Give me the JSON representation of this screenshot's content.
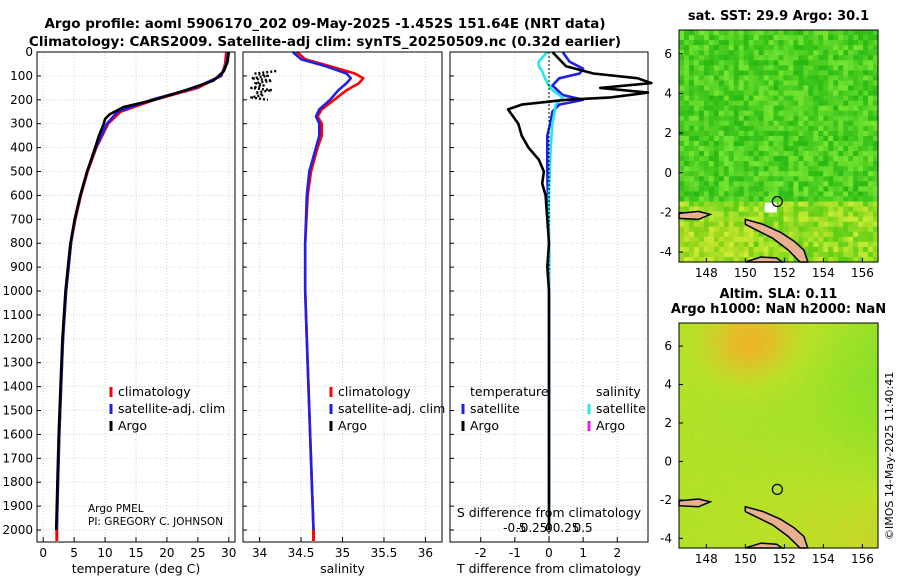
{
  "title": {
    "line1": "Argo profile: aoml 5906170_202 09-May-2025 -1.452S 151.64E (NRT data)",
    "line2": "Climatology: CARS2009. Satellite-adj clim: synTS_20250509.nc (0.32d earlier)"
  },
  "watermark": "©IMOS 14-May-2025 11:40:41",
  "colors": {
    "climatology": "#ff0000",
    "satellite_adj": "#1f1fe6",
    "argo": "#000000",
    "satellite_sal": "#22e8ee",
    "argo_sal": "#e020e0",
    "sst_green": "#3dc83d",
    "land": "#e8b090"
  },
  "chart_data": [
    {
      "id": "temperature",
      "type": "line",
      "xlabel": "temperature (deg C)",
      "ylabel": "",
      "xlim": [
        -1,
        31
      ],
      "ylim": [
        0,
        2050
      ],
      "y_reversed": true,
      "xticks": [
        0,
        5,
        10,
        15,
        20,
        25,
        30
      ],
      "yticks": [
        0,
        100,
        200,
        300,
        400,
        500,
        600,
        700,
        800,
        900,
        1000,
        1100,
        1200,
        1300,
        1400,
        1500,
        1600,
        1700,
        1800,
        1900,
        2000
      ],
      "legend": [
        "climatology",
        "satellite-adj. clim",
        "Argo"
      ],
      "annotation": [
        "Argo PMEL",
        "PI: GREGORY C. JOHNSON"
      ],
      "series": [
        {
          "name": "climatology",
          "color": "#ff0000",
          "depth": [
            0,
            50,
            100,
            150,
            200,
            250,
            300,
            400,
            500,
            600,
            700,
            800,
            900,
            1000,
            1200,
            1400,
            1600,
            1800,
            2000
          ],
          "values": [
            29.6,
            29.4,
            28.8,
            25,
            18,
            12.5,
            10.5,
            8.6,
            7.2,
            6.1,
            5.2,
            4.5,
            4.1,
            3.7,
            3.2,
            2.9,
            2.6,
            2.4,
            2.2
          ]
        },
        {
          "name": "satellite-adj. clim",
          "color": "#1f1fe6",
          "depth": [
            0,
            50,
            100,
            150,
            200,
            250,
            300,
            400,
            500,
            600,
            700,
            800,
            900,
            1000,
            1200,
            1400,
            1600,
            1800,
            2000
          ],
          "values": [
            29.9,
            29.6,
            28.7,
            24.5,
            17.5,
            12,
            10.3,
            8.5,
            7.1,
            6,
            5.1,
            4.5,
            4.1,
            3.7,
            3.2,
            2.9,
            2.6,
            2.4,
            2.2
          ]
        },
        {
          "name": "Argo",
          "color": "#000000",
          "depth": [
            0,
            40,
            80,
            120,
            160,
            200,
            230,
            260,
            280,
            300,
            350,
            400,
            500,
            600,
            700,
            800,
            900,
            1000,
            1200,
            1400,
            1600,
            1800,
            2000
          ],
          "values": [
            30,
            29.8,
            29.2,
            27.5,
            23,
            18,
            13,
            10.8,
            10,
            9.8,
            9,
            8.4,
            7.1,
            6,
            5.1,
            4.4,
            4,
            3.6,
            3.1,
            2.8,
            2.5,
            2.3,
            2.1
          ]
        }
      ]
    },
    {
      "id": "salinity",
      "type": "line",
      "xlabel": "salinity",
      "xlim": [
        33.8,
        36.2
      ],
      "ylim": [
        0,
        2050
      ],
      "y_reversed": true,
      "xticks": [
        34,
        34.5,
        35,
        35.5,
        36
      ],
      "legend": [
        "climatology",
        "satellite-adj. clim",
        "Argo"
      ],
      "series": [
        {
          "name": "climatology",
          "color": "#ff0000",
          "depth": [
            0,
            30,
            60,
            90,
            110,
            130,
            160,
            200,
            240,
            270,
            300,
            350,
            400,
            500,
            600,
            800,
            1000,
            1200,
            1500,
            1800,
            2000
          ],
          "values": [
            34.45,
            34.55,
            34.85,
            35.15,
            35.25,
            35.2,
            35.05,
            34.9,
            34.75,
            34.7,
            34.75,
            34.75,
            34.7,
            34.62,
            34.58,
            34.55,
            34.55,
            34.57,
            34.6,
            34.63,
            34.65
          ]
        },
        {
          "name": "satellite-adj. clim",
          "color": "#1f1fe6",
          "depth": [
            0,
            30,
            60,
            90,
            110,
            130,
            160,
            200,
            240,
            270,
            300,
            350,
            400,
            500,
            600,
            800,
            1000,
            1200,
            1500,
            1800,
            2000
          ],
          "values": [
            34.4,
            34.5,
            34.8,
            35.05,
            35.1,
            35.05,
            34.95,
            34.85,
            34.72,
            34.68,
            34.72,
            34.72,
            34.68,
            34.6,
            34.57,
            34.55,
            34.55,
            34.57,
            34.6,
            34.63,
            34.65
          ]
        },
        {
          "name": "Argo",
          "color": "#000000",
          "dashed": true,
          "depth": [
            80,
            90,
            100,
            110,
            120,
            130,
            140,
            150,
            160,
            170,
            180,
            190,
            200
          ],
          "values": [
            34.2,
            33.95,
            34.1,
            33.9,
            34.15,
            33.95,
            34.05,
            33.9,
            34.15,
            33.95,
            34.05,
            33.9,
            34.1
          ]
        }
      ]
    },
    {
      "id": "difference",
      "type": "line",
      "xlabel": "T difference from climatology",
      "xlabel_top": "S difference from climatology",
      "xlim": [
        -2.9,
        2.9
      ],
      "ylim": [
        0,
        2050
      ],
      "y_reversed": true,
      "xticks": [
        -2,
        -1,
        0,
        1,
        2
      ],
      "xtick_labels": [
        "-2",
        "-1",
        "0",
        "1",
        "2"
      ],
      "sticks": [
        -0.5,
        -0.25,
        0,
        0.25,
        0.5
      ],
      "stick_labels": [
        "-0.5",
        "-0.25",
        "0",
        "0.25",
        "0.5"
      ],
      "legend_t": [
        "temperature",
        "satellite",
        "Argo"
      ],
      "legend_s": [
        "salinity",
        "satellite",
        "Argo"
      ],
      "series": [
        {
          "name": "T satellite",
          "color": "#1f1fe6",
          "depth": [
            0,
            40,
            70,
            90,
            110,
            140,
            180,
            200,
            220,
            250,
            290,
            350,
            500,
            800,
            1000,
            1500,
            2000
          ],
          "values": [
            0.4,
            0.6,
            1,
            0.9,
            0.3,
            0.1,
            0.4,
            1,
            0.3,
            0.1,
            0.05,
            -0.05,
            -0.05,
            0,
            0,
            0,
            0
          ]
        },
        {
          "name": "S satellite",
          "color": "#22e8ee",
          "depth": [
            0,
            40,
            60,
            80,
            100,
            130,
            160,
            190,
            220,
            260,
            300,
            400,
            600,
            800,
            1000,
            1300,
            1600,
            2000
          ],
          "values": [
            -0.05,
            -0.3,
            -0.3,
            -0.2,
            -0.15,
            -0.05,
            0.1,
            0.4,
            0.2,
            0.15,
            0.1,
            0.05,
            0,
            0,
            0,
            0,
            0,
            0
          ]
        },
        {
          "name": "T Argo",
          "color": "#000000",
          "depth": [
            0,
            60,
            90,
            110,
            130,
            150,
            170,
            190,
            200,
            220,
            240,
            260,
            300,
            350,
            400,
            450,
            500,
            550,
            600,
            700,
            800,
            900,
            1000,
            1200,
            1500,
            1800,
            2000
          ],
          "values": [
            0.1,
            0.5,
            1.3,
            2.6,
            3,
            1.5,
            2.9,
            1.8,
            0.5,
            -0.8,
            -1.2,
            -1.1,
            -0.9,
            -0.8,
            -0.6,
            -0.3,
            -0.15,
            -0.2,
            -0.1,
            -0.05,
            0,
            -0.05,
            0,
            0,
            0,
            0,
            0
          ]
        }
      ]
    },
    {
      "id": "sst_map",
      "type": "heatmap",
      "title": "sat. SST: 29.9 Argo: 30.1",
      "xticks": [
        148,
        150,
        152,
        154,
        156
      ],
      "yticks": [
        6,
        4,
        2,
        0,
        -2,
        -4
      ],
      "xlim": [
        146.6,
        156.8
      ],
      "ylim": [
        -4.5,
        7.2
      ],
      "profile_lon": 151.64,
      "profile_lat": -1.452
    },
    {
      "id": "sla_map",
      "type": "heatmap",
      "title_line1": "Altim. SLA: 0.11",
      "title_line2": "Argo h1000: NaN h2000: NaN",
      "xticks": [
        148,
        150,
        152,
        154,
        156
      ],
      "yticks": [
        6,
        4,
        2,
        0,
        -2,
        -4
      ],
      "xlim": [
        146.6,
        156.8
      ],
      "ylim": [
        -4.5,
        7.2
      ],
      "profile_lon": 151.64,
      "profile_lat": -1.452
    }
  ]
}
